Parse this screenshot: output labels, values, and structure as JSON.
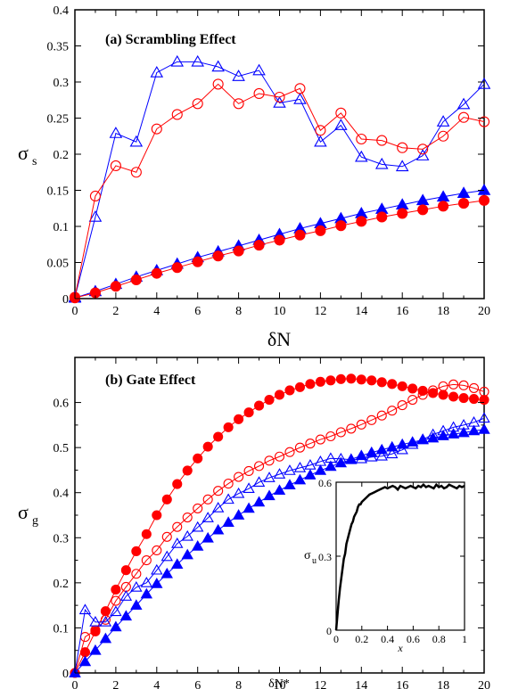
{
  "chart_data": [
    {
      "type": "line",
      "title": "(a) Scrambling Effect",
      "xlabel": "δN",
      "ylabel": "σ",
      "ylabel_sub": "s",
      "xlim": [
        0,
        20
      ],
      "ylim": [
        0,
        0.4
      ],
      "xticks": [
        "0",
        "2",
        "4",
        "6",
        "8",
        "10",
        "12",
        "14",
        "16",
        "18",
        "20"
      ],
      "yticks": [
        "0",
        "0.05",
        "0.1",
        "0.15",
        "0.2",
        "0.25",
        "0.3",
        "0.35",
        "0.4"
      ],
      "grid": false,
      "series": [
        {
          "color": "#0000ff",
          "marker": "triangle-open",
          "x": [
            0,
            1,
            2,
            3,
            4,
            5,
            6,
            7,
            8,
            9,
            10,
            11,
            12,
            13,
            14,
            15,
            16,
            17,
            18,
            19,
            20
          ],
          "y": [
            0.002,
            0.113,
            0.229,
            0.217,
            0.313,
            0.328,
            0.328,
            0.321,
            0.308,
            0.316,
            0.271,
            0.276,
            0.217,
            0.24,
            0.196,
            0.186,
            0.183,
            0.198,
            0.245,
            0.269,
            0.297
          ]
        },
        {
          "color": "#ff0000",
          "marker": "circle-open",
          "x": [
            0,
            1,
            2,
            3,
            4,
            5,
            6,
            7,
            8,
            9,
            10,
            11,
            12,
            13,
            14,
            15,
            16,
            17,
            18,
            19,
            20
          ],
          "y": [
            0.002,
            0.142,
            0.184,
            0.175,
            0.235,
            0.255,
            0.27,
            0.297,
            0.27,
            0.284,
            0.279,
            0.291,
            0.233,
            0.257,
            0.221,
            0.219,
            0.209,
            0.207,
            0.225,
            0.251,
            0.245
          ]
        },
        {
          "color": "#0000ff",
          "marker": "triangle-filled",
          "x": [
            0,
            1,
            2,
            3,
            4,
            5,
            6,
            7,
            8,
            9,
            10,
            11,
            12,
            13,
            14,
            15,
            16,
            17,
            18,
            19,
            20
          ],
          "y": [
            0.001,
            0.01,
            0.02,
            0.03,
            0.039,
            0.048,
            0.057,
            0.065,
            0.073,
            0.081,
            0.089,
            0.097,
            0.104,
            0.111,
            0.118,
            0.124,
            0.13,
            0.136,
            0.141,
            0.146,
            0.15
          ]
        },
        {
          "color": "#ff0000",
          "marker": "circle-filled",
          "x": [
            0,
            1,
            2,
            3,
            4,
            5,
            6,
            7,
            8,
            9,
            10,
            11,
            12,
            13,
            14,
            15,
            16,
            17,
            18,
            19,
            20
          ],
          "y": [
            0.001,
            0.008,
            0.017,
            0.026,
            0.035,
            0.043,
            0.051,
            0.059,
            0.066,
            0.074,
            0.081,
            0.088,
            0.094,
            0.101,
            0.107,
            0.113,
            0.118,
            0.123,
            0.128,
            0.132,
            0.136
          ]
        }
      ]
    },
    {
      "type": "line",
      "title": "(b) Gate Effect",
      "xlabel": "δN*",
      "ylabel": "σ",
      "ylabel_sub": "g",
      "xlim": [
        0,
        20
      ],
      "ylim": [
        0,
        0.7
      ],
      "xticks": [
        "0",
        "2",
        "4",
        "6",
        "8",
        "10",
        "12",
        "14",
        "16",
        "18",
        "20"
      ],
      "yticks": [
        "0",
        "0.1",
        "0.2",
        "0.3",
        "0.4",
        "0.5",
        "0.6"
      ],
      "grid": false,
      "series": [
        {
          "color": "#ff0000",
          "marker": "circle-filled",
          "x": [
            0,
            0.5,
            1,
            1.5,
            2,
            2.5,
            3,
            3.5,
            4,
            4.5,
            5,
            5.5,
            6,
            6.5,
            7,
            7.5,
            8,
            8.5,
            9,
            9.5,
            10,
            10.5,
            11,
            11.5,
            12,
            12.5,
            13,
            13.5,
            14,
            14.5,
            15,
            15.5,
            16,
            16.5,
            17,
            17.5,
            18,
            18.5,
            19,
            19.5,
            20
          ],
          "y": [
            0,
            0.046,
            0.092,
            0.137,
            0.185,
            0.228,
            0.27,
            0.308,
            0.35,
            0.385,
            0.419,
            0.449,
            0.476,
            0.502,
            0.524,
            0.545,
            0.563,
            0.578,
            0.593,
            0.606,
            0.617,
            0.627,
            0.634,
            0.641,
            0.646,
            0.649,
            0.652,
            0.653,
            0.651,
            0.649,
            0.645,
            0.641,
            0.636,
            0.631,
            0.626,
            0.621,
            0.617,
            0.613,
            0.61,
            0.608,
            0.606
          ]
        },
        {
          "color": "#ff0000",
          "marker": "circle-open",
          "x": [
            0,
            0.5,
            1,
            1.5,
            2,
            2.5,
            3,
            3.5,
            4,
            4.5,
            5,
            5.5,
            6,
            6.5,
            7,
            7.5,
            8,
            8.5,
            9,
            9.5,
            10,
            10.5,
            11,
            11.5,
            12,
            12.5,
            13,
            13.5,
            14,
            14.5,
            15,
            15.5,
            16,
            16.5,
            17,
            17.5,
            18,
            18.5,
            19,
            19.5,
            20
          ],
          "y": [
            0,
            0.08,
            0.095,
            0.118,
            0.16,
            0.191,
            0.22,
            0.25,
            0.272,
            0.302,
            0.324,
            0.345,
            0.365,
            0.385,
            0.404,
            0.42,
            0.435,
            0.448,
            0.459,
            0.471,
            0.48,
            0.49,
            0.5,
            0.509,
            0.518,
            0.525,
            0.534,
            0.542,
            0.551,
            0.561,
            0.571,
            0.582,
            0.594,
            0.606,
            0.617,
            0.627,
            0.636,
            0.64,
            0.638,
            0.632,
            0.624
          ]
        },
        {
          "color": "#0000ff",
          "marker": "triangle-open",
          "x": [
            0,
            0.5,
            1,
            1.5,
            2,
            2.5,
            3,
            3.5,
            4,
            4.5,
            5,
            5.5,
            6,
            6.5,
            7,
            7.5,
            8,
            8.5,
            9,
            9.5,
            10,
            10.5,
            11,
            11.5,
            12,
            12.5,
            13,
            13.5,
            14,
            14.5,
            15,
            15.5,
            16,
            16.5,
            17,
            17.5,
            18,
            18.5,
            19,
            19.5,
            20
          ],
          "y": [
            0,
            0.14,
            0.113,
            0.113,
            0.136,
            0.17,
            0.19,
            0.2,
            0.228,
            0.258,
            0.287,
            0.303,
            0.323,
            0.344,
            0.366,
            0.385,
            0.398,
            0.409,
            0.423,
            0.433,
            0.441,
            0.449,
            0.455,
            0.461,
            0.469,
            0.476,
            0.475,
            0.473,
            0.475,
            0.479,
            0.481,
            0.486,
            0.495,
            0.507,
            0.518,
            0.529,
            0.537,
            0.545,
            0.55,
            0.556,
            0.565
          ]
        },
        {
          "color": "#0000ff",
          "marker": "triangle-filled",
          "x": [
            0,
            0.5,
            1,
            1.5,
            2,
            2.5,
            3,
            3.5,
            4,
            4.5,
            5,
            5.5,
            6,
            6.5,
            7,
            7.5,
            8,
            8.5,
            9,
            9.5,
            10,
            10.5,
            11,
            11.5,
            12,
            12.5,
            13,
            13.5,
            14,
            14.5,
            15,
            15.5,
            16,
            16.5,
            17,
            17.5,
            18,
            18.5,
            19,
            19.5,
            20
          ],
          "y": [
            0,
            0.025,
            0.05,
            0.076,
            0.102,
            0.126,
            0.15,
            0.175,
            0.198,
            0.22,
            0.241,
            0.262,
            0.281,
            0.299,
            0.317,
            0.334,
            0.35,
            0.365,
            0.379,
            0.393,
            0.405,
            0.417,
            0.428,
            0.439,
            0.449,
            0.458,
            0.466,
            0.474,
            0.482,
            0.489,
            0.495,
            0.501,
            0.507,
            0.512,
            0.517,
            0.521,
            0.526,
            0.53,
            0.533,
            0.537,
            0.54
          ]
        }
      ],
      "inset": {
        "type": "line",
        "xlabel": "x",
        "ylabel": "σ",
        "ylabel_sub": "u",
        "xlim": [
          0,
          1
        ],
        "ylim": [
          0,
          0.6
        ],
        "xticks": [
          "0",
          "0.2",
          "0.4",
          "0.6",
          "0.8",
          "1"
        ],
        "yticks": [
          "0",
          "0.3",
          "0.6"
        ],
        "series": [
          {
            "color": "#000000",
            "marker": "none",
            "x": [
              0,
              0.01,
              0.02,
              0.03,
              0.04,
              0.05,
              0.06,
              0.07,
              0.08,
              0.09,
              0.1,
              0.11,
              0.12,
              0.13,
              0.14,
              0.15,
              0.16,
              0.17,
              0.18,
              0.19,
              0.2,
              0.22,
              0.24,
              0.26,
              0.28,
              0.3,
              0.32,
              0.34,
              0.36,
              0.38,
              0.4,
              0.42,
              0.44,
              0.46,
              0.48,
              0.5,
              0.52,
              0.54,
              0.56,
              0.58,
              0.6,
              0.62,
              0.64,
              0.66,
              0.68,
              0.7,
              0.72,
              0.74,
              0.76,
              0.78,
              0.8,
              0.82,
              0.84,
              0.86,
              0.88,
              0.9,
              0.92,
              0.94,
              0.96,
              0.98,
              1.0
            ],
            "y": [
              0,
              0.06,
              0.12,
              0.17,
              0.21,
              0.25,
              0.29,
              0.31,
              0.35,
              0.37,
              0.39,
              0.41,
              0.43,
              0.44,
              0.46,
              0.47,
              0.48,
              0.5,
              0.51,
              0.51,
              0.52,
              0.53,
              0.54,
              0.55,
              0.555,
              0.56,
              0.565,
              0.57,
              0.575,
              0.58,
              0.575,
              0.58,
              0.585,
              0.58,
              0.57,
              0.585,
              0.58,
              0.575,
              0.58,
              0.585,
              0.58,
              0.575,
              0.585,
              0.58,
              0.59,
              0.58,
              0.585,
              0.58,
              0.575,
              0.59,
              0.58,
              0.585,
              0.575,
              0.58,
              0.59,
              0.585,
              0.58,
              0.575,
              0.585,
              0.58,
              0.585
            ]
          }
        ]
      }
    }
  ]
}
